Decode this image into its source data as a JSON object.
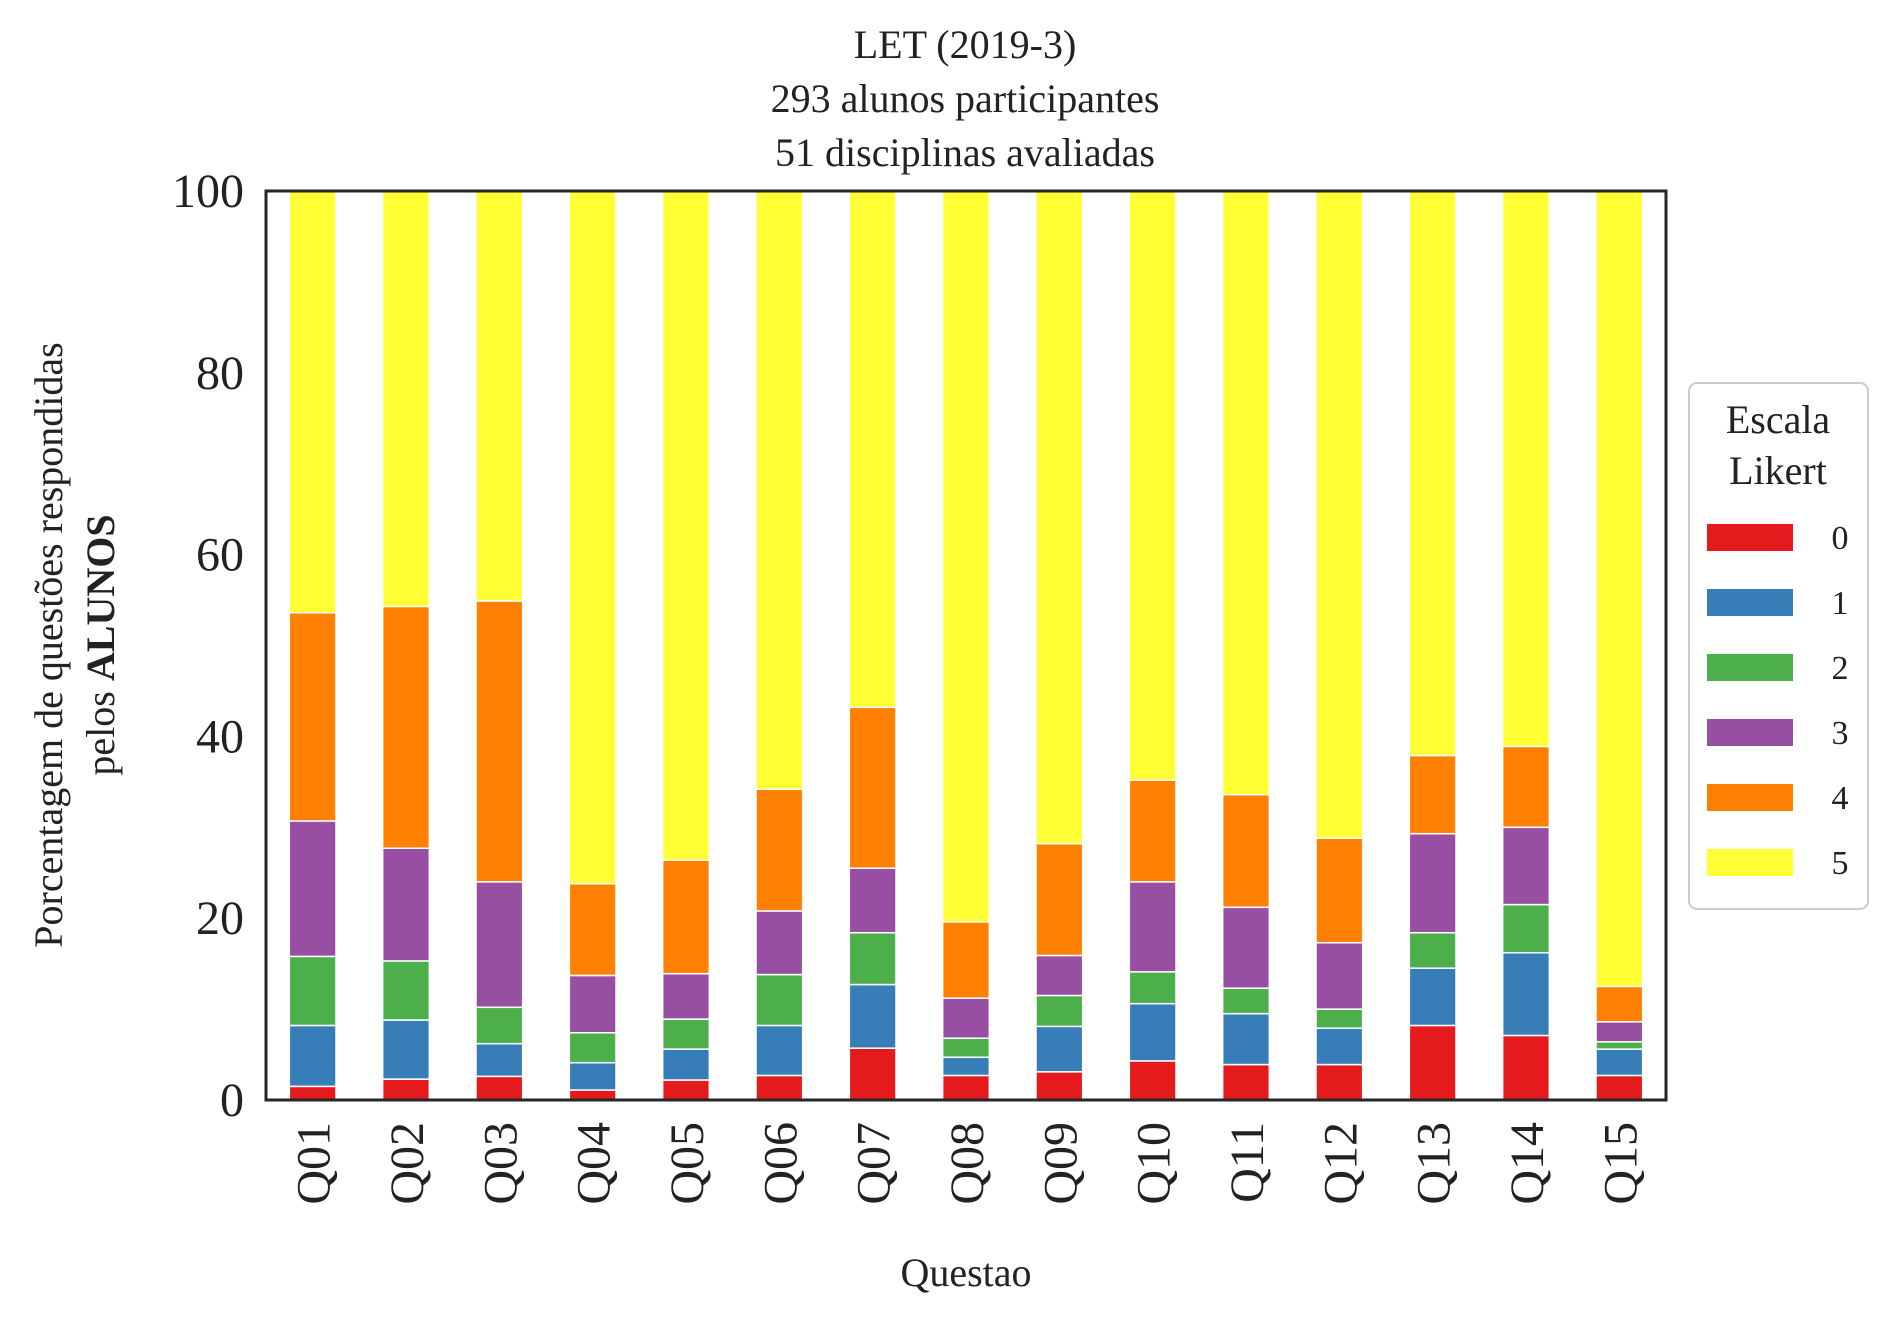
{
  "chart_data": {
    "type": "bar",
    "stacked": true,
    "title": [
      "LET (2019-3)",
      "293 alunos participantes",
      "51 disciplinas avaliadas"
    ],
    "xlabel": "Questao",
    "ylabel": {
      "line1": "Porcentagem de questões respondidas",
      "line2_prefix": "pelos ",
      "line2_bold": "ALUNOS"
    },
    "ylim": [
      0,
      100
    ],
    "yticks": [
      0,
      20,
      40,
      60,
      80,
      100
    ],
    "categories": [
      "Q01",
      "Q02",
      "Q03",
      "Q04",
      "Q05",
      "Q06",
      "Q07",
      "Q08",
      "Q09",
      "Q10",
      "Q11",
      "Q12",
      "Q13",
      "Q14",
      "Q15"
    ],
    "legend": {
      "title": [
        "Escala",
        "Likert"
      ],
      "position": "right"
    },
    "grid": false,
    "series": [
      {
        "name": "0",
        "color": "#e41a1c",
        "values": [
          1.5,
          2.3,
          2.6,
          1.1,
          2.2,
          2.7,
          5.7,
          2.7,
          3.1,
          4.3,
          3.9,
          3.9,
          8.2,
          7.1,
          2.7
        ]
      },
      {
        "name": "1",
        "color": "#377eb8",
        "values": [
          6.7,
          6.5,
          3.6,
          3.0,
          3.4,
          5.5,
          7.0,
          2.0,
          5.0,
          6.3,
          5.6,
          4.0,
          6.3,
          9.1,
          2.9
        ]
      },
      {
        "name": "2",
        "color": "#4daf4a",
        "values": [
          7.6,
          6.5,
          4.0,
          3.3,
          3.3,
          5.6,
          5.7,
          2.1,
          3.4,
          3.5,
          2.8,
          2.1,
          3.9,
          5.3,
          0.8
        ]
      },
      {
        "name": "3",
        "color": "#984ea3",
        "values": [
          14.9,
          12.4,
          13.8,
          6.3,
          5.0,
          7.0,
          7.1,
          4.4,
          4.4,
          9.9,
          8.9,
          7.3,
          10.9,
          8.5,
          2.2
        ]
      },
      {
        "name": "4",
        "color": "#ff7f00",
        "values": [
          22.9,
          26.6,
          30.9,
          10.1,
          12.5,
          13.4,
          17.7,
          8.4,
          12.3,
          11.2,
          12.4,
          11.5,
          8.6,
          8.9,
          3.9
        ]
      },
      {
        "name": "5",
        "color": "#ffff33",
        "values": [
          46.4,
          45.7,
          45.1,
          76.2,
          73.6,
          65.8,
          56.8,
          80.4,
          71.8,
          64.8,
          66.4,
          71.2,
          62.1,
          61.1,
          87.5
        ]
      }
    ]
  }
}
